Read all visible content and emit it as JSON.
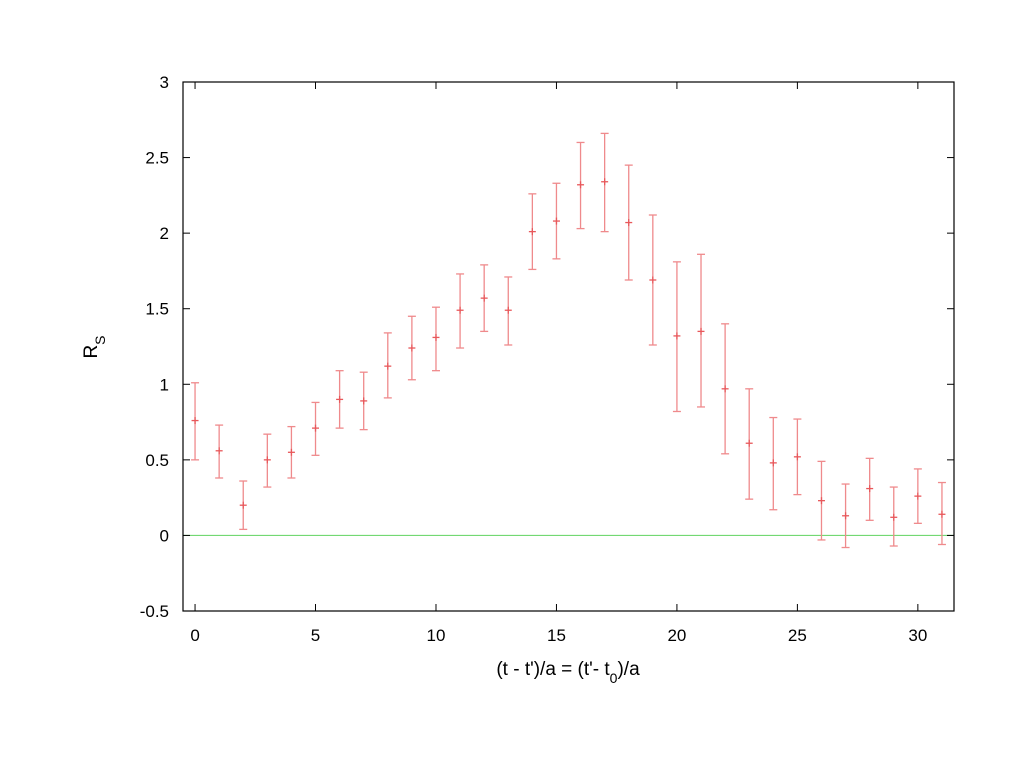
{
  "chart_data": {
    "type": "scatter",
    "xlabel": {
      "main": "(t - t')/a = (t'- t",
      "sub": "0",
      "tail": ")/a"
    },
    "ylabel": {
      "main": "R",
      "sub": "S"
    },
    "xlim": [
      -0.5,
      31.5
    ],
    "ylim": [
      -0.5,
      3
    ],
    "xticks": [
      0,
      5,
      10,
      15,
      20,
      25,
      30
    ],
    "yticks": [
      -0.5,
      0,
      0.5,
      1,
      1.5,
      2,
      2.5,
      3
    ],
    "grid": false,
    "legend": "none",
    "colors": {
      "points": "#e8585b",
      "error_bars": "#ef8a8c",
      "reference_line": "#5fd35f",
      "axes": "#000000"
    },
    "reference_line": {
      "y": 0
    },
    "series": [
      {
        "x": [
          0,
          1,
          2,
          3,
          4,
          5,
          6,
          7,
          8,
          9,
          10,
          11,
          12,
          13,
          14,
          15,
          16,
          17,
          18,
          19,
          20,
          21,
          22,
          23,
          24,
          25,
          26,
          27,
          28,
          29,
          30,
          31
        ],
        "y": [
          0.76,
          0.56,
          0.2,
          0.5,
          0.55,
          0.71,
          0.9,
          0.89,
          1.12,
          1.24,
          1.31,
          1.49,
          1.57,
          1.49,
          2.01,
          2.08,
          2.32,
          2.34,
          2.07,
          1.69,
          1.32,
          1.35,
          0.97,
          0.61,
          0.48,
          0.52,
          0.23,
          0.13,
          0.31,
          0.12,
          0.26,
          0.14
        ],
        "yerr_low": [
          0.5,
          0.38,
          0.04,
          0.32,
          0.38,
          0.53,
          0.71,
          0.7,
          0.91,
          1.03,
          1.09,
          1.24,
          1.35,
          1.26,
          1.76,
          1.83,
          2.03,
          2.01,
          1.69,
          1.26,
          0.82,
          0.85,
          0.54,
          0.24,
          0.17,
          0.27,
          -0.03,
          -0.08,
          0.1,
          -0.07,
          0.08,
          -0.06
        ],
        "yerr_high": [
          1.01,
          0.73,
          0.36,
          0.67,
          0.72,
          0.88,
          1.09,
          1.08,
          1.34,
          1.45,
          1.51,
          1.73,
          1.79,
          1.71,
          2.26,
          2.33,
          2.6,
          2.66,
          2.45,
          2.12,
          1.81,
          1.86,
          1.4,
          0.97,
          0.78,
          0.77,
          0.49,
          0.34,
          0.51,
          0.32,
          0.44,
          0.35
        ]
      }
    ]
  }
}
